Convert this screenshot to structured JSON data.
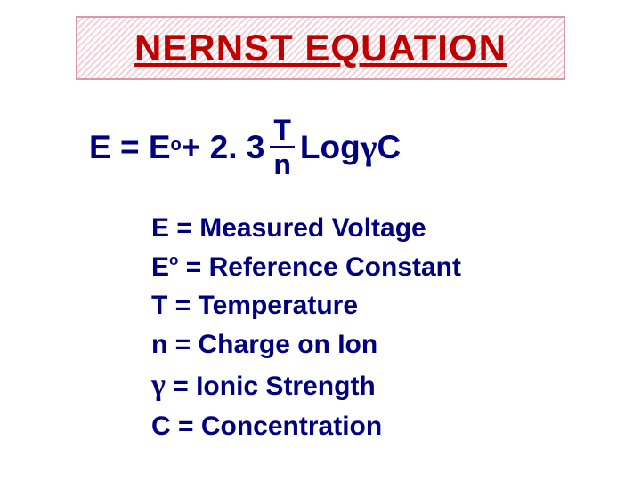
{
  "title": "NERNST EQUATION",
  "colors": {
    "title_text": "#c00000",
    "body_text": "#000080",
    "background": "#ffffff",
    "title_border": "#d89aa8",
    "title_pattern_a": "#ffffff",
    "title_pattern_b": "#f4d0d8"
  },
  "fonts": {
    "family": "Arial, Helvetica, sans-serif",
    "title_size_pt": 32,
    "equation_size_pt": 28,
    "legend_size_pt": 22
  },
  "equation": {
    "pre": "E = E",
    "sup": "o",
    "mid": " + 2. 3 ",
    "frac_top": "T",
    "frac_bot": "n",
    "log": " Log ",
    "gamma": "γ",
    "tail": " C"
  },
  "legend": {
    "line1_pre": "E = ",
    "line1_val": "Measured Voltage",
    "line2_pre": "E",
    "line2_sup": "o",
    "line2_val": " = Reference Constant",
    "line3": "T = Temperature",
    "line4": "n = Charge on Ion",
    "line5_sym": "γ",
    "line5_val": " = Ionic Strength",
    "line6": "C = Concentration"
  }
}
